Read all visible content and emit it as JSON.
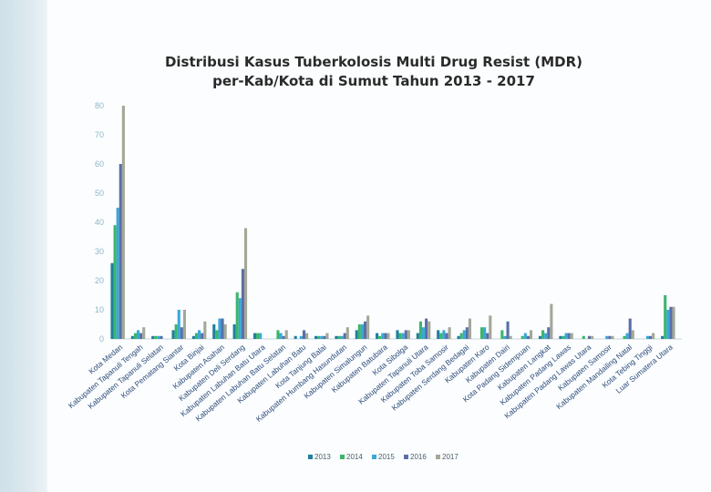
{
  "chart_data": {
    "type": "bar",
    "title_line1": "Distribusi Kasus Tuberkolosis Multi Drug Resist (MDR)",
    "title_line2": "per-Kab/Kota di Sumut  Tahun 2013  - 2017",
    "ylim": [
      0,
      80
    ],
    "yticks": [
      "0",
      "10",
      "20",
      "30",
      "40",
      "50",
      "60",
      "70",
      "80"
    ],
    "grid": false,
    "legend_position": "bottom",
    "categories": [
      "Kota Medan",
      "Kabupaten Tapanuli Tengah",
      "Kabupaten Tapanuli Selatan",
      "Kota Pematang Siantar",
      "Kota Binjai",
      "Kabupaten Asahan",
      "Kabupaten Deli Serdang",
      "Kabupaten Labuhan Batu Utara",
      "Kabupaten Labuhan Batu Selatan",
      "Kabupaten Labuhan Batu",
      "Kota Tanjung Balai",
      "Kabupaten Humbang Hasundutan",
      "Kabupaten Simalungun",
      "Kabupaten Batubara",
      "Kota Sibolga",
      "Kabupaten Tapanuli Utara",
      "Kabupaten Toba Samosir",
      "Kabupaten Serdang Bedagai",
      "Kabupaten Karo",
      "Kabupaten Dairi",
      "Kota Padang Sidempuan",
      "Kabupaten Langkat",
      "Kabupaten Padang Lawas",
      "Kabupaten Padang Lawas Utara",
      "Kabupaten Samosir",
      "Kabupaten Mandailing Natal",
      "Kota Tebing Tinggi",
      "Luar Sumatera Utara"
    ],
    "series": [
      {
        "name": "2013",
        "color": "#1f7f9e",
        "values": [
          26,
          1,
          1,
          3,
          1,
          5,
          5,
          2,
          0,
          1,
          1,
          1,
          3,
          2,
          3,
          2,
          3,
          1,
          0,
          0,
          0,
          1,
          1,
          0,
          0,
          0,
          0,
          1
        ]
      },
      {
        "name": "2014",
        "color": "#3cb56b",
        "values": [
          39,
          2,
          1,
          5,
          2,
          3,
          16,
          2,
          3,
          0,
          1,
          1,
          5,
          1,
          2,
          6,
          2,
          2,
          4,
          3,
          1,
          3,
          1,
          1,
          0,
          1,
          0,
          15
        ]
      },
      {
        "name": "2015",
        "color": "#39a8d8",
        "values": [
          45,
          3,
          1,
          10,
          3,
          7,
          14,
          2,
          2,
          1,
          1,
          1,
          5,
          2,
          2,
          4,
          3,
          3,
          4,
          1,
          2,
          2,
          2,
          0,
          1,
          2,
          1,
          10
        ]
      },
      {
        "name": "2016",
        "color": "#5a6ea8",
        "values": [
          60,
          2,
          1,
          4,
          2,
          7,
          24,
          0,
          1,
          3,
          1,
          2,
          6,
          2,
          3,
          7,
          2,
          4,
          2,
          6,
          1,
          4,
          2,
          1,
          1,
          7,
          1,
          11
        ]
      },
      {
        "name": "2017",
        "color": "#a3a897",
        "values": [
          80,
          4,
          0,
          10,
          6,
          5,
          38,
          0,
          3,
          2,
          2,
          4,
          8,
          2,
          3,
          6,
          4,
          7,
          8,
          1,
          3,
          12,
          2,
          1,
          1,
          3,
          2,
          11
        ]
      }
    ]
  }
}
